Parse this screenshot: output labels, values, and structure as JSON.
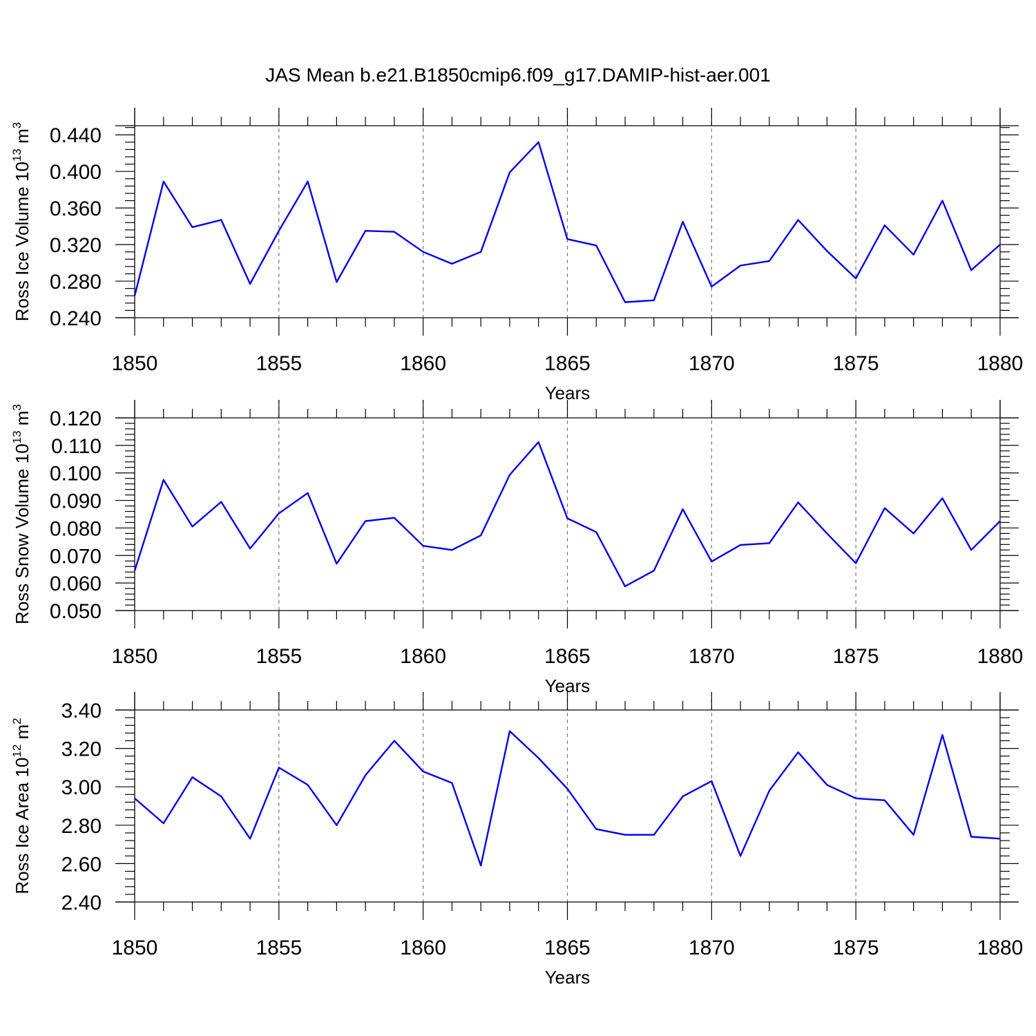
{
  "title": "JAS Mean b.e21.B1850cmip6.f09_g17.DAMIP-hist-aer.001",
  "colors": {
    "line": "#0000ee",
    "grid": "#777777",
    "axis": "#000000"
  },
  "chart_data": [
    {
      "type": "line",
      "ylabel": {
        "text": "Ross Ice Volume 10",
        "sup1": "13",
        "unit": " m",
        "sup2": "3"
      },
      "xlabel": "Years",
      "xlim": [
        1850,
        1880
      ],
      "ylim": [
        0.24,
        0.45
      ],
      "xticks": [
        "1850",
        "1855",
        "1860",
        "1865",
        "1870",
        "1875",
        "1880"
      ],
      "yticks": [
        "0.240",
        "0.280",
        "0.320",
        "0.360",
        "0.400",
        "0.440"
      ],
      "grid": "x-major-dashed",
      "series": [
        {
          "name": "Ross Ice Volume",
          "x": [
            1850,
            1851,
            1852,
            1853,
            1854,
            1855,
            1856,
            1857,
            1858,
            1859,
            1860,
            1861,
            1862,
            1863,
            1864,
            1865,
            1866,
            1867,
            1868,
            1869,
            1870,
            1871,
            1872,
            1873,
            1874,
            1875,
            1876,
            1877,
            1878,
            1879,
            1880
          ],
          "values": [
            0.264,
            0.389,
            0.339,
            0.347,
            0.277,
            0.335,
            0.389,
            0.279,
            0.335,
            0.334,
            0.312,
            0.299,
            0.312,
            0.399,
            0.432,
            0.326,
            0.319,
            0.257,
            0.259,
            0.345,
            0.274,
            0.297,
            0.302,
            0.347,
            0.313,
            0.283,
            0.341,
            0.309,
            0.368,
            0.292,
            0.32
          ]
        }
      ]
    },
    {
      "type": "line",
      "ylabel": {
        "text": "Ross Snow Volume 10",
        "sup1": "13",
        "unit": " m",
        "sup2": "3"
      },
      "xlabel": "Years",
      "xlim": [
        1850,
        1880
      ],
      "ylim": [
        0.05,
        0.12
      ],
      "xticks": [
        "1850",
        "1855",
        "1860",
        "1865",
        "1870",
        "1875",
        "1880"
      ],
      "yticks": [
        "0.050",
        "0.060",
        "0.070",
        "0.080",
        "0.090",
        "0.100",
        "0.110",
        "0.120"
      ],
      "grid": "x-major-dashed",
      "series": [
        {
          "name": "Ross Snow Volume",
          "x": [
            1850,
            1851,
            1852,
            1853,
            1854,
            1855,
            1856,
            1857,
            1858,
            1859,
            1860,
            1861,
            1862,
            1863,
            1864,
            1865,
            1866,
            1867,
            1868,
            1869,
            1870,
            1871,
            1872,
            1873,
            1874,
            1875,
            1876,
            1877,
            1878,
            1879,
            1880
          ],
          "values": [
            0.0645,
            0.0975,
            0.0805,
            0.0895,
            0.0725,
            0.0853,
            0.0927,
            0.067,
            0.0825,
            0.0837,
            0.0735,
            0.072,
            0.0773,
            0.0993,
            0.1112,
            0.0835,
            0.0785,
            0.0588,
            0.0645,
            0.0868,
            0.0678,
            0.0738,
            0.0745,
            0.0893,
            0.078,
            0.0672,
            0.0872,
            0.078,
            0.0908,
            0.072,
            0.0825
          ]
        }
      ]
    },
    {
      "type": "line",
      "ylabel": {
        "text": "Ross Ice Area 10",
        "sup1": "12",
        "unit": " m",
        "sup2": "2"
      },
      "xlabel": "Years",
      "xlim": [
        1850,
        1880
      ],
      "ylim": [
        2.4,
        3.4
      ],
      "xticks": [
        "1850",
        "1855",
        "1860",
        "1865",
        "1870",
        "1875",
        "1880"
      ],
      "yticks": [
        "2.40",
        "2.60",
        "2.80",
        "3.00",
        "3.20",
        "3.40"
      ],
      "grid": "x-major-dashed",
      "series": [
        {
          "name": "Ross Ice Area",
          "x": [
            1850,
            1851,
            1852,
            1853,
            1854,
            1855,
            1856,
            1857,
            1858,
            1859,
            1860,
            1861,
            1862,
            1863,
            1864,
            1865,
            1866,
            1867,
            1868,
            1869,
            1870,
            1871,
            1872,
            1873,
            1874,
            1875,
            1876,
            1877,
            1878,
            1879,
            1880
          ],
          "values": [
            2.94,
            2.81,
            3.05,
            2.95,
            2.73,
            3.1,
            3.01,
            2.8,
            3.06,
            3.24,
            3.08,
            3.02,
            2.59,
            3.29,
            3.15,
            2.99,
            2.78,
            2.75,
            2.75,
            2.95,
            3.03,
            2.64,
            2.98,
            3.18,
            3.01,
            2.94,
            2.93,
            2.75,
            3.27,
            2.74,
            2.73
          ]
        }
      ]
    }
  ]
}
